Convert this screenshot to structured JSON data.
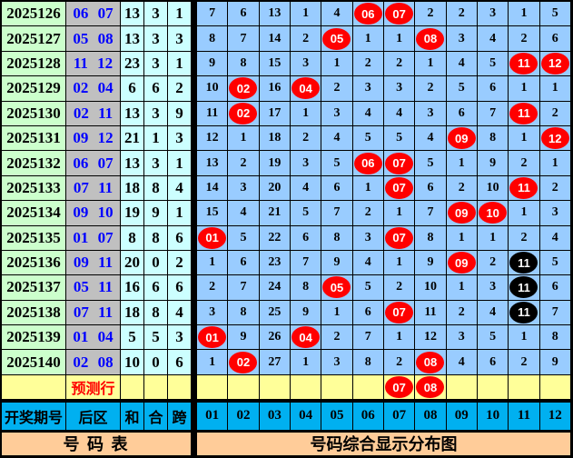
{
  "chart_data": {
    "type": "table",
    "title_left": "号  码  表",
    "title_right": "号码综合显示分布图",
    "column_headers": {
      "period": "开奖期号",
      "back": "后区",
      "sum": "和",
      "tail": "合",
      "span": "跨"
    },
    "ball_columns": [
      "01",
      "02",
      "03",
      "04",
      "05",
      "06",
      "07",
      "08",
      "09",
      "10",
      "11",
      "12"
    ],
    "prediction_label": "预测行",
    "cell_encoding": {
      "R": "red-ball",
      "K": "black-ball",
      "": "empty",
      "plain": "miss-count"
    },
    "rows": [
      {
        "period": "2025126",
        "back": "06 07",
        "sum": "13",
        "tail": "3",
        "span": "1",
        "grid": [
          "7",
          "6",
          "13",
          "1",
          "4",
          "R06",
          "R07",
          "2",
          "2",
          "3",
          "1",
          "5"
        ]
      },
      {
        "period": "2025127",
        "back": "05 08",
        "sum": "13",
        "tail": "3",
        "span": "3",
        "grid": [
          "8",
          "7",
          "14",
          "2",
          "R05",
          "1",
          "1",
          "R08",
          "3",
          "4",
          "2",
          "6"
        ]
      },
      {
        "period": "2025128",
        "back": "11 12",
        "sum": "23",
        "tail": "3",
        "span": "1",
        "grid": [
          "9",
          "8",
          "15",
          "3",
          "1",
          "2",
          "2",
          "1",
          "4",
          "5",
          "R11",
          "R12"
        ]
      },
      {
        "period": "2025129",
        "back": "02 04",
        "sum": "6",
        "tail": "6",
        "span": "2",
        "grid": [
          "10",
          "R02",
          "16",
          "R04",
          "2",
          "3",
          "3",
          "2",
          "5",
          "6",
          "1",
          "1"
        ]
      },
      {
        "period": "2025130",
        "back": "02 11",
        "sum": "13",
        "tail": "3",
        "span": "9",
        "grid": [
          "11",
          "R02",
          "17",
          "1",
          "3",
          "4",
          "4",
          "3",
          "6",
          "7",
          "R11",
          "2"
        ]
      },
      {
        "period": "2025131",
        "back": "09 12",
        "sum": "21",
        "tail": "1",
        "span": "3",
        "grid": [
          "12",
          "1",
          "18",
          "2",
          "4",
          "5",
          "5",
          "4",
          "R09",
          "8",
          "1",
          "R12"
        ]
      },
      {
        "period": "2025132",
        "back": "06 07",
        "sum": "13",
        "tail": "3",
        "span": "1",
        "grid": [
          "13",
          "2",
          "19",
          "3",
          "5",
          "R06",
          "R07",
          "5",
          "1",
          "9",
          "2",
          "1"
        ]
      },
      {
        "period": "2025133",
        "back": "07 11",
        "sum": "18",
        "tail": "8",
        "span": "4",
        "grid": [
          "14",
          "3",
          "20",
          "4",
          "6",
          "1",
          "R07",
          "6",
          "2",
          "10",
          "R11",
          "2"
        ]
      },
      {
        "period": "2025134",
        "back": "09 10",
        "sum": "19",
        "tail": "9",
        "span": "1",
        "grid": [
          "15",
          "4",
          "21",
          "5",
          "7",
          "2",
          "1",
          "7",
          "R09",
          "R10",
          "1",
          "3"
        ]
      },
      {
        "period": "2025135",
        "back": "01 07",
        "sum": "8",
        "tail": "8",
        "span": "6",
        "grid": [
          "R01",
          "5",
          "22",
          "6",
          "8",
          "3",
          "R07",
          "8",
          "1",
          "1",
          "2",
          "4"
        ]
      },
      {
        "period": "2025136",
        "back": "09 11",
        "sum": "20",
        "tail": "0",
        "span": "2",
        "grid": [
          "1",
          "6",
          "23",
          "7",
          "9",
          "4",
          "1",
          "9",
          "R09",
          "2",
          "K11",
          "5"
        ]
      },
      {
        "period": "2025137",
        "back": "05 11",
        "sum": "16",
        "tail": "6",
        "span": "6",
        "grid": [
          "2",
          "7",
          "24",
          "8",
          "R05",
          "5",
          "2",
          "10",
          "1",
          "3",
          "K11",
          "6"
        ]
      },
      {
        "period": "2025138",
        "back": "07 11",
        "sum": "18",
        "tail": "8",
        "span": "4",
        "grid": [
          "3",
          "8",
          "25",
          "9",
          "1",
          "6",
          "R07",
          "11",
          "2",
          "4",
          "K11",
          "7"
        ]
      },
      {
        "period": "2025139",
        "back": "01 04",
        "sum": "5",
        "tail": "5",
        "span": "3",
        "grid": [
          "R01",
          "9",
          "26",
          "R04",
          "2",
          "7",
          "1",
          "12",
          "3",
          "5",
          "1",
          "8"
        ]
      },
      {
        "period": "2025140",
        "back": "02 08",
        "sum": "10",
        "tail": "0",
        "span": "6",
        "grid": [
          "1",
          "R02",
          "27",
          "1",
          "3",
          "8",
          "2",
          "R08",
          "4",
          "6",
          "2",
          "9"
        ]
      }
    ],
    "prediction_grid": [
      "",
      "",
      "",
      "",
      "",
      "",
      "R07",
      "R08",
      "",
      "",
      "",
      ""
    ]
  },
  "colors": {
    "period_bg": "#ccffcc",
    "backzone_bg": "#c0c0c0",
    "backzone_text": "#0000ff",
    "stat_bg": "#ccffff",
    "grid_bg": "#99ccff",
    "prediction_bg": "#ffff99",
    "prediction_text": "#ff0000",
    "header_bg": "#00b0f0",
    "footer_bg": "#ffcc99",
    "red_ball": "#ff0000",
    "black_ball": "#000000"
  }
}
